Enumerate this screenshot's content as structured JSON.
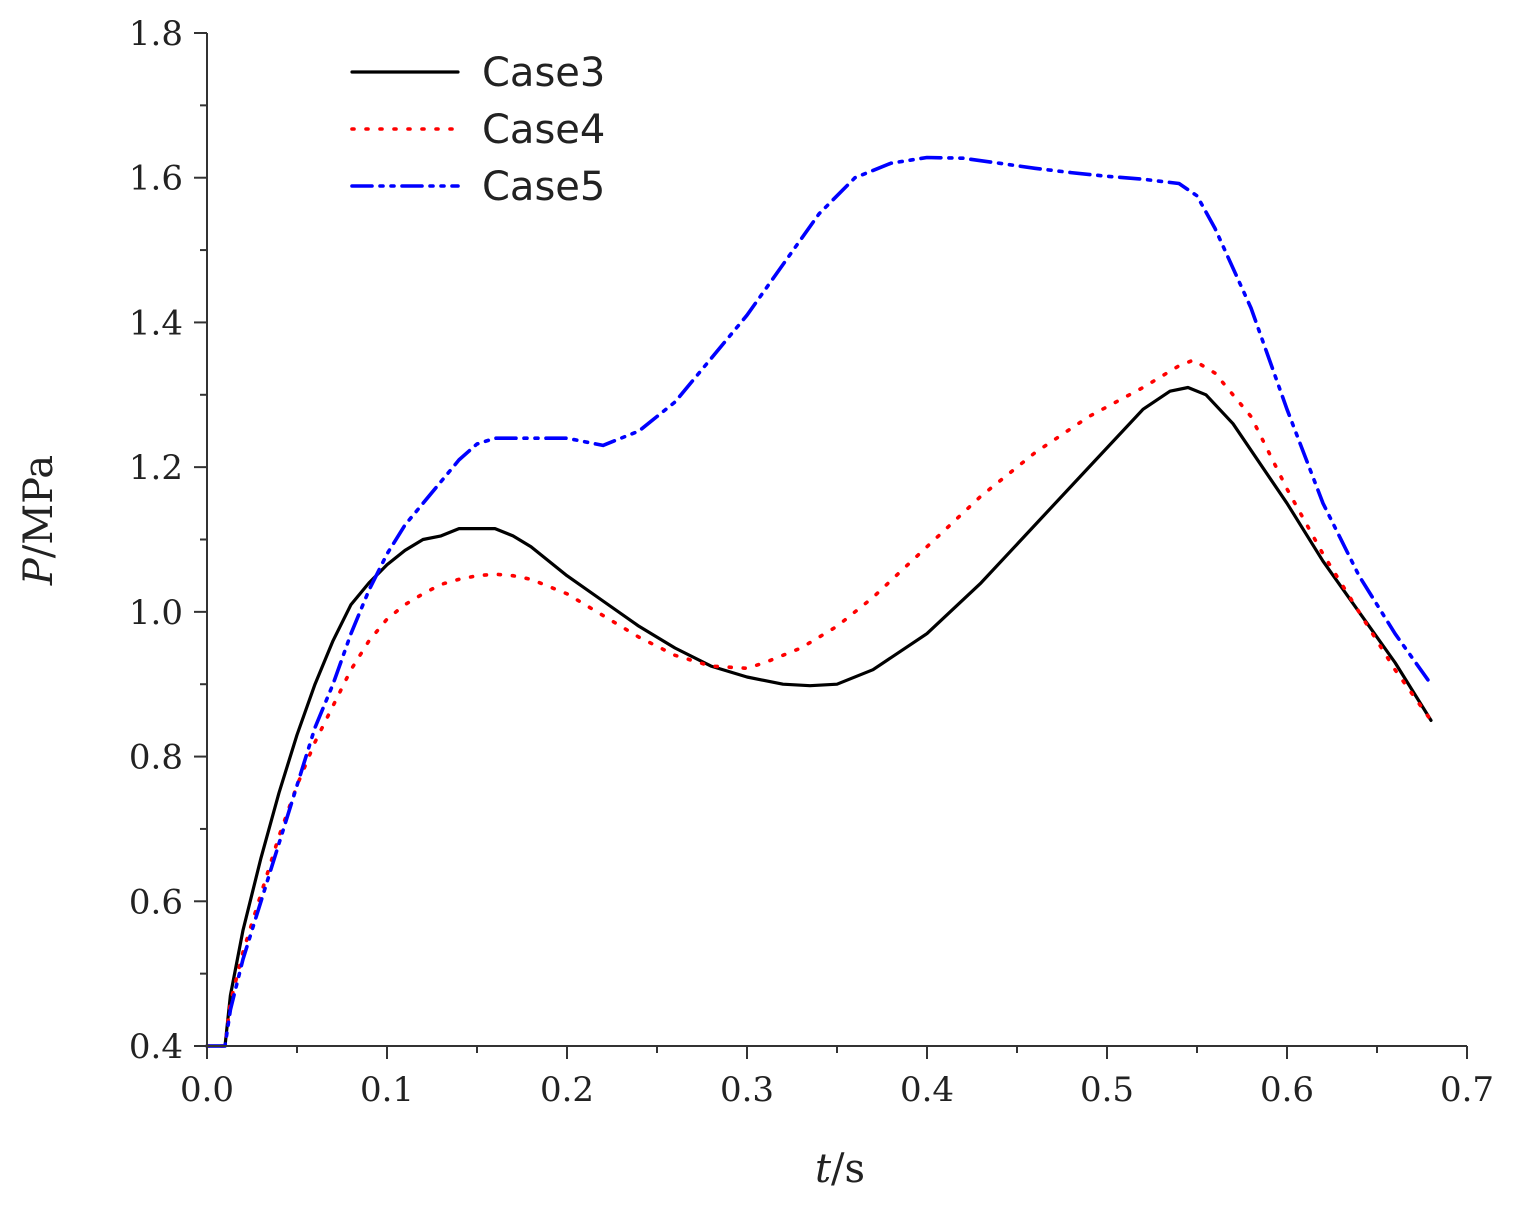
{
  "chart_data": {
    "type": "line",
    "title": "",
    "xlabel_var": "t",
    "xlabel_unit": "/s",
    "ylabel_var": "P",
    "ylabel_unit": "/MPa",
    "xlim": [
      0.0,
      0.7
    ],
    "ylim": [
      0.4,
      1.8
    ],
    "xticks": [
      0.0,
      0.1,
      0.2,
      0.3,
      0.4,
      0.5,
      0.6,
      0.7
    ],
    "xtick_labels": [
      "0.0",
      "0.1",
      "0.2",
      "0.3",
      "0.4",
      "0.5",
      "0.6",
      "0.7"
    ],
    "yticks": [
      0.4,
      0.6,
      0.8,
      1.0,
      1.2,
      1.4,
      1.6,
      1.8
    ],
    "ytick_labels": [
      "0.4",
      "0.6",
      "0.8",
      "1.0",
      "1.2",
      "1.4",
      "1.6",
      "1.8"
    ],
    "legend_position": "top-left",
    "series": [
      {
        "name": "Case3",
        "color": "#000000",
        "style": "solid",
        "x": [
          0.0,
          0.01,
          0.013,
          0.02,
          0.03,
          0.04,
          0.05,
          0.06,
          0.07,
          0.08,
          0.09,
          0.1,
          0.11,
          0.12,
          0.13,
          0.14,
          0.15,
          0.16,
          0.17,
          0.18,
          0.19,
          0.2,
          0.22,
          0.24,
          0.26,
          0.28,
          0.3,
          0.32,
          0.335,
          0.35,
          0.37,
          0.4,
          0.43,
          0.46,
          0.49,
          0.52,
          0.535,
          0.545,
          0.555,
          0.57,
          0.6,
          0.62,
          0.64,
          0.66,
          0.68
        ],
        "y": [
          0.4,
          0.4,
          0.47,
          0.56,
          0.66,
          0.75,
          0.83,
          0.9,
          0.96,
          1.01,
          1.04,
          1.065,
          1.085,
          1.1,
          1.105,
          1.115,
          1.115,
          1.115,
          1.105,
          1.09,
          1.07,
          1.05,
          1.015,
          0.98,
          0.95,
          0.925,
          0.91,
          0.9,
          0.898,
          0.9,
          0.92,
          0.97,
          1.04,
          1.12,
          1.2,
          1.28,
          1.305,
          1.31,
          1.3,
          1.26,
          1.15,
          1.07,
          1.0,
          0.93,
          0.85
        ]
      },
      {
        "name": "Case4",
        "color": "#ff0000",
        "style": "dotted",
        "x": [
          0.0,
          0.01,
          0.013,
          0.02,
          0.03,
          0.04,
          0.05,
          0.06,
          0.07,
          0.08,
          0.09,
          0.1,
          0.11,
          0.12,
          0.13,
          0.14,
          0.15,
          0.16,
          0.17,
          0.18,
          0.2,
          0.22,
          0.24,
          0.26,
          0.28,
          0.3,
          0.31,
          0.33,
          0.35,
          0.37,
          0.4,
          0.43,
          0.46,
          0.49,
          0.52,
          0.54,
          0.548,
          0.56,
          0.58,
          0.6,
          0.62,
          0.64,
          0.66,
          0.68
        ],
        "y": [
          0.4,
          0.4,
          0.46,
          0.53,
          0.61,
          0.69,
          0.76,
          0.82,
          0.87,
          0.92,
          0.96,
          0.99,
          1.01,
          1.025,
          1.038,
          1.045,
          1.05,
          1.052,
          1.05,
          1.045,
          1.025,
          0.995,
          0.965,
          0.94,
          0.925,
          0.922,
          0.93,
          0.95,
          0.98,
          1.02,
          1.09,
          1.16,
          1.22,
          1.27,
          1.31,
          1.34,
          1.348,
          1.33,
          1.27,
          1.17,
          1.08,
          1.0,
          0.92,
          0.85
        ]
      },
      {
        "name": "Case5",
        "color": "#0000ff",
        "style": "dashdotdot",
        "x": [
          0.0,
          0.01,
          0.013,
          0.02,
          0.03,
          0.04,
          0.05,
          0.06,
          0.07,
          0.08,
          0.09,
          0.1,
          0.11,
          0.12,
          0.13,
          0.14,
          0.15,
          0.16,
          0.18,
          0.2,
          0.22,
          0.24,
          0.26,
          0.28,
          0.3,
          0.32,
          0.34,
          0.36,
          0.38,
          0.4,
          0.42,
          0.44,
          0.46,
          0.48,
          0.5,
          0.52,
          0.54,
          0.55,
          0.56,
          0.58,
          0.6,
          0.62,
          0.64,
          0.66,
          0.68
        ],
        "y": [
          0.4,
          0.4,
          0.45,
          0.52,
          0.6,
          0.68,
          0.76,
          0.84,
          0.9,
          0.97,
          1.03,
          1.08,
          1.12,
          1.15,
          1.18,
          1.21,
          1.232,
          1.24,
          1.24,
          1.24,
          1.23,
          1.25,
          1.29,
          1.35,
          1.41,
          1.48,
          1.55,
          1.6,
          1.62,
          1.628,
          1.627,
          1.62,
          1.613,
          1.607,
          1.602,
          1.598,
          1.592,
          1.575,
          1.53,
          1.42,
          1.28,
          1.15,
          1.05,
          0.97,
          0.9
        ]
      }
    ]
  }
}
